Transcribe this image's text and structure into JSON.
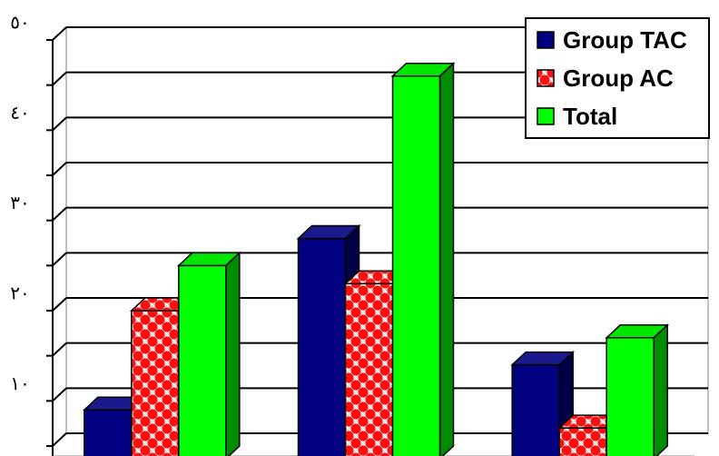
{
  "chart_data": {
    "type": "bar",
    "title": "",
    "xlabel": "",
    "ylabel": "",
    "categories": [
      "",
      "",
      ""
    ],
    "ylim": [
      5,
      50
    ],
    "yticks": [
      10,
      20,
      30,
      40,
      50
    ],
    "ytick_labels": [
      "١٠",
      "٢٠",
      "٣٠",
      "٤٠",
      "٥٠"
    ],
    "grid": true,
    "legend_position": "top-right",
    "series": [
      {
        "name": "Group TAC",
        "values": [
          9,
          28,
          14
        ],
        "color": "#000080",
        "pattern": "solid"
      },
      {
        "name": "Group AC",
        "values": [
          20,
          23,
          7
        ],
        "color": "#FF0000",
        "pattern": "checker"
      },
      {
        "name": "Total",
        "values": [
          25,
          46,
          17
        ],
        "color": "#00FF00",
        "pattern": "solid"
      }
    ]
  }
}
